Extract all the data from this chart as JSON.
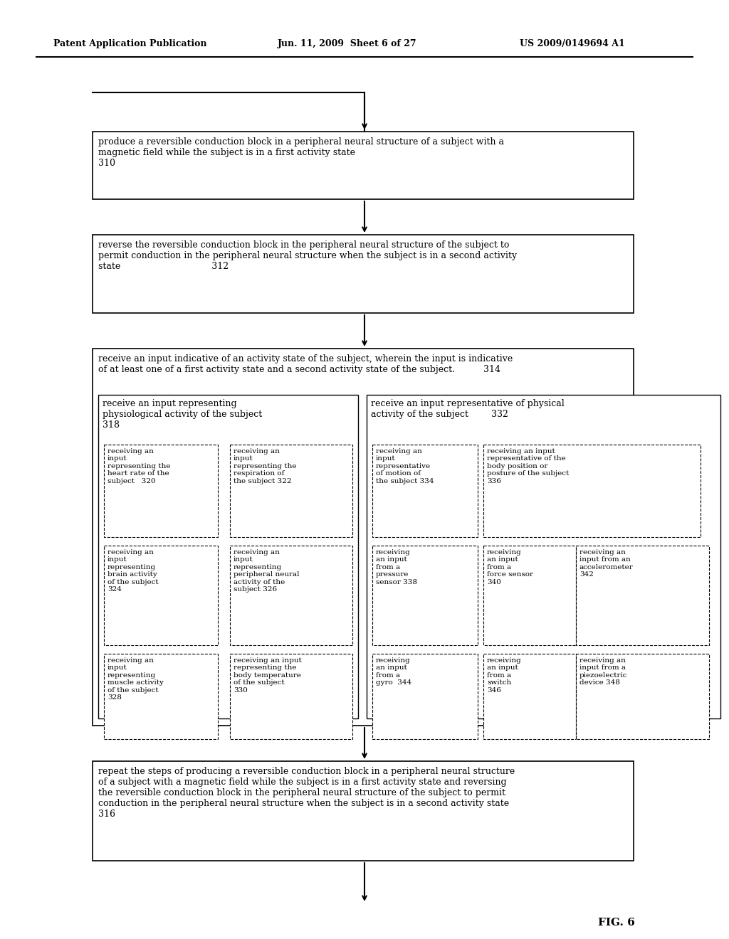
{
  "title_left": "Patent Application Publication",
  "title_mid": "Jun. 11, 2009  Sheet 6 of 27",
  "title_right": "US 2009/0149694 A1",
  "fig_label": "FIG. 6",
  "bg_color": "#ffffff",
  "box_310": "produce a reversible conduction block in a peripheral neural structure of a subject with a\nmagnetic field while the subject is in a first activity state\n310",
  "box_312": "reverse the reversible conduction block in the peripheral neural structure of the subject to\npermit conduction in the peripheral neural structure when the subject is in a second activity\nstate                                312",
  "box_314": "receive an input indicative of an activity state of the subject, wherein the input is indicative\nof at least one of a first activity state and a second activity state of the subject.          314",
  "box_318": "receive an input representing\nphysiological activity of the subject\n318",
  "box_332": "receive an input representative of physical\nactivity of the subject        332",
  "box_320": "receiving an\ninput\nrepresenting the\nheart rate of the\nsubject   320",
  "box_322": "receiving an\ninput\nrepresenting the\nrespiration of\nthe subject 322",
  "box_334": "receiving an\ninput\nrepresentative\nof motion of\nthe subject 334",
  "box_336": "receiving an input\nrepresentative of the\nbody position or\nposture of the subject\n336",
  "box_324": "receiving an\ninput\nrepresenting\nbrain activity\nof the subject\n324",
  "box_326": "receiving an\ninput\nrepresenting\nperipheral neural\nactivity of the\nsubject 326",
  "box_338": "receiving\nan input\nfrom a\npressure\nsensor 338",
  "box_340": "receiving\nan input\nfrom a\nforce sensor\n340",
  "box_342": "receiving an\ninput from an\naccelerometer\n342",
  "box_328": "receiving an\ninput\nrepresenting\nmuscle activity\nof the subject\n328",
  "box_330": "receiving an input\nrepresenting the\nbody temperature\nof the subject\n330",
  "box_344": "receiving\nan input\nfrom a\ngyro  344",
  "box_346": "receiving\nan input\nfrom a\nswitch\n346",
  "box_348": "receiving an\ninput from a\npiezoelectric\ndevice 348",
  "box_316": "repeat the steps of producing a reversible conduction block in a peripheral neural structure\nof a subject with a magnetic field while the subject is in a first activity state and reversing\nthe reversible conduction block in the peripheral neural structure of the subject to permit\nconduction in the peripheral neural structure when the subject is in a second activity state\n316"
}
